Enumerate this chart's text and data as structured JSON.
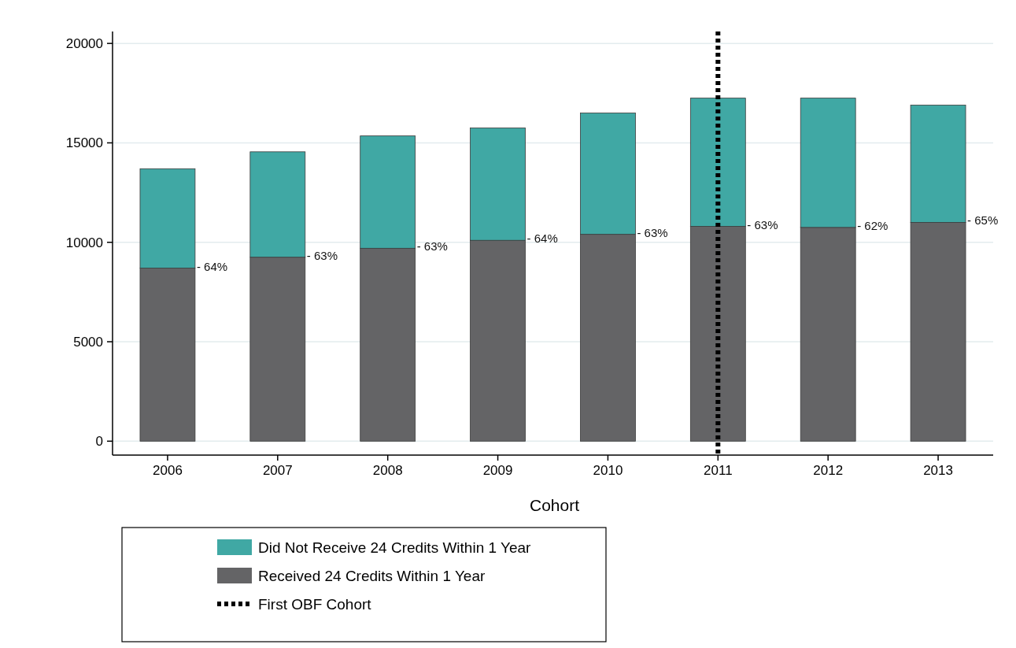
{
  "chart_data": {
    "type": "bar",
    "stacked": true,
    "xlabel": "Cohort",
    "categories": [
      "2006",
      "2007",
      "2008",
      "2009",
      "2010",
      "2011",
      "2012",
      "2013"
    ],
    "series": [
      {
        "name": "Received 24 Credits Within 1 Year",
        "color": "#646466",
        "values": [
          8700,
          9250,
          9700,
          10100,
          10400,
          10800,
          10750,
          11000
        ]
      },
      {
        "name": "Did Not Receive 24 Credits Within 1 Year",
        "color": "#40a8a4",
        "values": [
          5000,
          5300,
          5650,
          5650,
          6100,
          6450,
          6500,
          5900
        ]
      }
    ],
    "ylim": [
      -700,
      20600
    ],
    "yticks": [
      0,
      5000,
      10000,
      15000,
      20000
    ],
    "grid": "y",
    "legend": "bottom",
    "ref_lines": [
      {
        "axis": "x",
        "value": "2011",
        "label": "First OBF Cohort",
        "color": "#000000",
        "line_style": "dotted"
      }
    ],
    "annotations": [
      {
        "text": "- 64%",
        "x": "2006",
        "y": 8700
      },
      {
        "text": "- 63%",
        "x": "2007",
        "y": 9250
      },
      {
        "text": "- 63%",
        "x": "2008",
        "y": 9700
      },
      {
        "text": "- 64%",
        "x": "2009",
        "y": 10100
      },
      {
        "text": "- 63%",
        "x": "2010",
        "y": 10400
      },
      {
        "text": "- 63%",
        "x": "2011",
        "y": 10800
      },
      {
        "text": "- 62%",
        "x": "2012",
        "y": 10750
      },
      {
        "text": "- 65%",
        "x": "2013",
        "y": 11000
      }
    ]
  }
}
